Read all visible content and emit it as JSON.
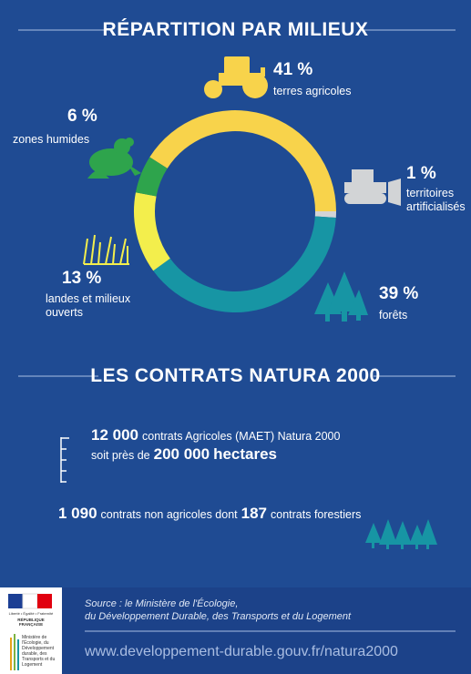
{
  "header": {
    "title": "RÉPARTITION PAR MILIEUX"
  },
  "chart_data": {
    "type": "donut",
    "categories": [
      "terres agricoles",
      "territoires artificialisés",
      "forêts",
      "landes et milieux ouverts",
      "zones humides"
    ],
    "values": [
      41,
      1,
      39,
      13,
      6
    ],
    "value_labels": [
      "41 %",
      "1 %",
      "39 %",
      "13 %",
      "6 %"
    ],
    "colors": [
      "#f8d34b",
      "#d2d4d6",
      "#1795a4",
      "#f3ee4c",
      "#2ea44c"
    ]
  },
  "contracts": {
    "title": "LES CONTRATS NATURA 2000",
    "lines": [
      [
        {
          "text": "12 000",
          "strong": true
        },
        {
          "text": "contrats Agricoles (MAET) Natura 2000",
          "strong": false
        }
      ],
      [
        {
          "text": "soit près de",
          "strong": false
        },
        {
          "text": "200 000",
          "strong": true
        },
        {
          "text": "hectares",
          "strong": true
        }
      ],
      [
        {
          "text": "1 090",
          "strong": true
        },
        {
          "text": "contrats non agricoles dont",
          "strong": false
        },
        {
          "text": "187",
          "strong": true
        },
        {
          "text": "contrats forestiers",
          "strong": false
        }
      ]
    ]
  },
  "footer": {
    "logo_motto": "Liberté • Égalité • Fraternité",
    "logo_country": "RÉPUBLIQUE FRANÇAISE",
    "ministry": "Ministère de l'Écologie, du Développement durable, des Transports et du Logement",
    "source_lines": [
      "Source : le Ministère de l'Écologie,",
      "du Développement Durable, des Transports et du Logement"
    ],
    "url": "www.developpement-durable.gouv.fr/natura2000"
  }
}
